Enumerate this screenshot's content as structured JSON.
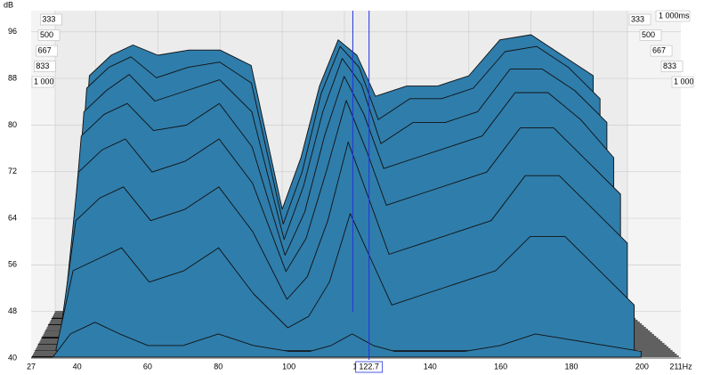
{
  "chart_data": {
    "type": "waterfall",
    "y_axis_label": "dB",
    "xlim": [
      27,
      211
    ],
    "xticks": [
      27,
      40,
      60,
      80,
      100,
      120,
      140,
      160,
      180,
      200,
      {
        "value": 211,
        "label": "211Hz"
      }
    ],
    "ylim": [
      40,
      96
    ],
    "yticks": [
      40,
      48,
      56,
      64,
      72,
      80,
      88,
      96
    ],
    "zlim": [
      0,
      1000
    ],
    "zticks": [
      333,
      500,
      667,
      833,
      {
        "value": 1000,
        "label": "1 000"
      }
    ],
    "z_unit_label": "1 000ms",
    "cursor": 122.7,
    "color": "#2f7dab",
    "grid": true,
    "frequencies": [
      27,
      33,
      38,
      45,
      52,
      60,
      70,
      80,
      90,
      100,
      106,
      112,
      118,
      124,
      130,
      140,
      150,
      160,
      170,
      180,
      190,
      200
    ],
    "slices": [
      {
        "time": 0,
        "values": [
          40,
          40,
          86,
          90,
          92,
          90,
          91,
          91,
          88,
          60,
          70,
          84,
          93,
          90,
          82,
          84,
          84,
          86,
          93,
          94,
          90,
          86
        ]
      },
      {
        "time": 140,
        "values": [
          40,
          40,
          84,
          88,
          90,
          86,
          88,
          89,
          85,
          58,
          68,
          83,
          92,
          88,
          78,
          82,
          82,
          84,
          91,
          92,
          88,
          82
        ]
      },
      {
        "time": 280,
        "values": [
          40,
          40,
          80,
          84,
          87,
          82,
          84,
          86,
          80,
          56,
          66,
          80,
          90,
          85,
          74,
          78,
          78,
          80,
          88,
          88,
          84,
          78
        ]
      },
      {
        "time": 420,
        "values": [
          40,
          40,
          76,
          80,
          82,
          77,
          78,
          82,
          74,
          54,
          62,
          76,
          87,
          80,
          70,
          72,
          74,
          76,
          84,
          84,
          79,
          72
        ]
      },
      {
        "time": 560,
        "values": [
          40,
          40,
          70,
          74,
          76,
          70,
          72,
          76,
          68,
          52,
          58,
          70,
          83,
          74,
          64,
          66,
          68,
          70,
          78,
          78,
          72,
          66
        ]
      },
      {
        "time": 700,
        "values": [
          40,
          40,
          62,
          66,
          68,
          62,
          64,
          68,
          60,
          48,
          52,
          62,
          76,
          66,
          56,
          58,
          60,
          62,
          70,
          70,
          64,
          58
        ]
      },
      {
        "time": 840,
        "values": [
          40,
          40,
          54,
          56,
          58,
          52,
          54,
          58,
          50,
          44,
          46,
          52,
          64,
          56,
          48,
          50,
          52,
          54,
          60,
          60,
          54,
          48
        ]
      },
      {
        "time": 980,
        "values": [
          40,
          40,
          44,
          46,
          44,
          42,
          42,
          44,
          42,
          41,
          41,
          42,
          44,
          42,
          41,
          41,
          41,
          42,
          44,
          43,
          42,
          41
        ]
      }
    ]
  }
}
